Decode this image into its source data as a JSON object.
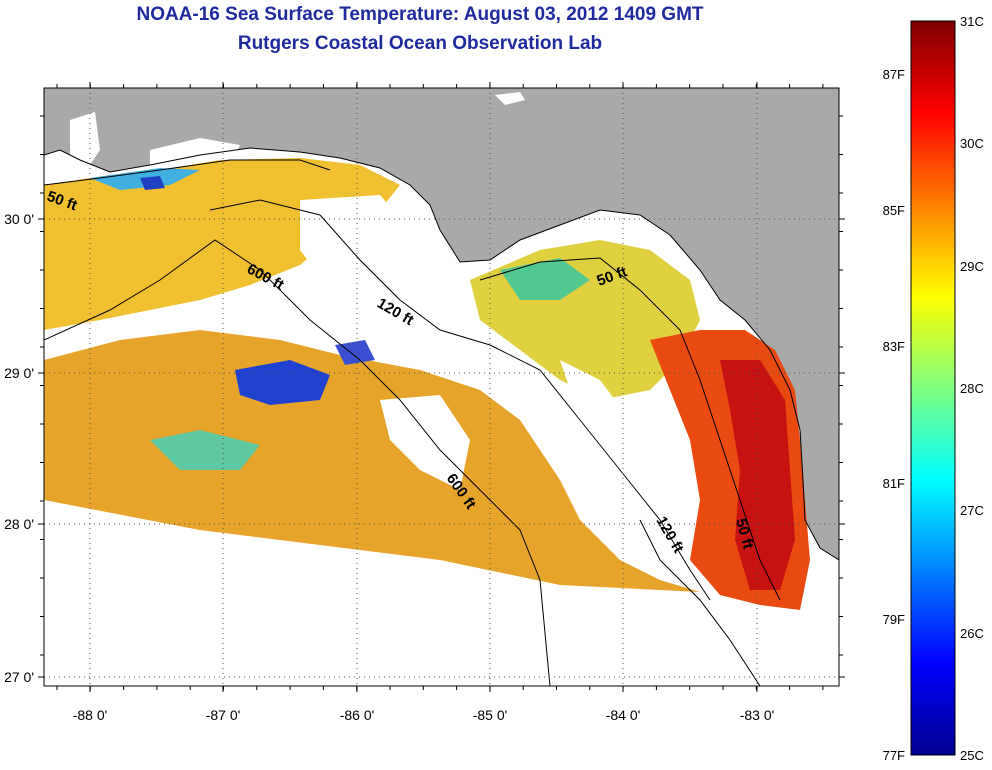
{
  "title": {
    "line1": "NOAA-16 Sea Surface Temperature:  August 03, 2012 1409 GMT",
    "line2": "Rutgers Coastal Ocean Observation Lab"
  },
  "axes": {
    "lon_ticks": [
      "-88 0'",
      "-87 0'",
      "-86 0'",
      "-85 0'",
      "-84 0'",
      "-83 0'"
    ],
    "lat_ticks": [
      "30 0'",
      "29 0'",
      "28 0'",
      "27 0'"
    ]
  },
  "contours": {
    "labels": [
      "50 ft",
      "600 ft",
      "120 ft",
      "50 ft",
      "600 ft",
      "120 ft",
      "50 ft"
    ]
  },
  "colorbar": {
    "celsius": [
      "31C",
      "30C",
      "29C",
      "28C",
      "27C",
      "26C",
      "25C"
    ],
    "fahrenheit": [
      "87F",
      "85F",
      "83F",
      "81F",
      "79F",
      "77F"
    ]
  },
  "colors": {
    "title": "#1f2a9e",
    "land": "#a9a9a9",
    "no_data": "#ffffff"
  }
}
